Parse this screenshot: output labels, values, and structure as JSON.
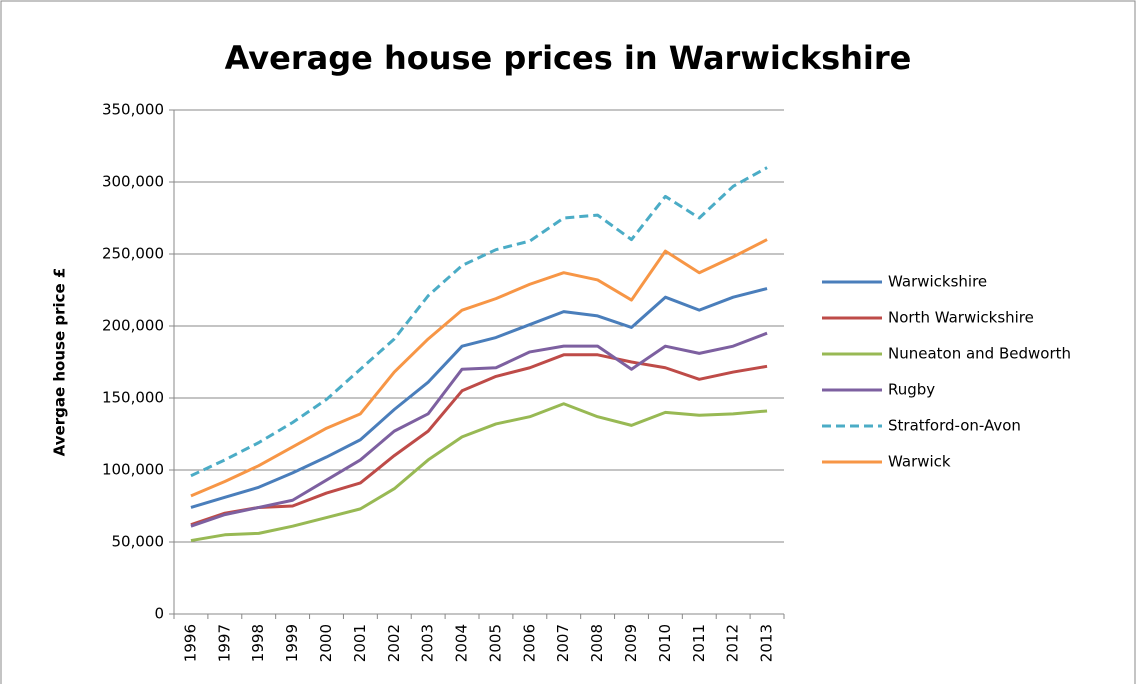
{
  "chart_data": {
    "type": "line",
    "title": "Average house prices in Warwickshire",
    "y_label": "Avergae house price £",
    "categories": [
      "1996",
      "1997",
      "1998",
      "1999",
      "2000",
      "2001",
      "2002",
      "2003",
      "2004",
      "2005",
      "2006",
      "2007",
      "2008",
      "2009",
      "2010",
      "2011",
      "2012",
      "2013"
    ],
    "series": [
      {
        "name": "Warwickshire",
        "color": "#4a7ebb",
        "style": "solid",
        "values": [
          74000,
          81000,
          88000,
          98000,
          109000,
          121000,
          142000,
          161000,
          186000,
          192000,
          201000,
          210000,
          207000,
          199000,
          220000,
          211000,
          220000,
          226000
        ]
      },
      {
        "name": "North Warwickshire",
        "color": "#be4b48",
        "style": "solid",
        "values": [
          62000,
          70000,
          74000,
          75000,
          84000,
          91000,
          110000,
          127000,
          155000,
          165000,
          171000,
          180000,
          180000,
          175000,
          171000,
          163000,
          168000,
          172000
        ]
      },
      {
        "name": "Nuneaton and Bedworth",
        "color": "#98b954",
        "style": "solid",
        "values": [
          51000,
          55000,
          56000,
          61000,
          67000,
          73000,
          87000,
          107000,
          123000,
          132000,
          137000,
          146000,
          137000,
          131000,
          140000,
          138000,
          139000,
          141000
        ]
      },
      {
        "name": "Rugby",
        "color": "#7d60a0",
        "style": "solid",
        "values": [
          61000,
          69000,
          74000,
          79000,
          93000,
          107000,
          127000,
          139000,
          170000,
          171000,
          182000,
          186000,
          186000,
          170000,
          186000,
          181000,
          186000,
          195000
        ]
      },
      {
        "name": "Stratford-on-Avon",
        "color": "#4bacc6",
        "style": "dashed",
        "values": [
          96000,
          107000,
          119000,
          133000,
          149000,
          170000,
          191000,
          221000,
          242000,
          253000,
          259000,
          275000,
          277000,
          260000,
          290000,
          275000,
          297000,
          310000
        ]
      },
      {
        "name": "Warwick",
        "color": "#f79646",
        "style": "solid",
        "values": [
          82000,
          92000,
          103000,
          116000,
          129000,
          139000,
          168000,
          191000,
          211000,
          219000,
          229000,
          237000,
          232000,
          218000,
          252000,
          237000,
          248000,
          260000
        ]
      }
    ],
    "ylim": [
      0,
      350000
    ],
    "yticks": [
      0,
      {
        "value": 50000,
        "label": "50,000"
      },
      {
        "value": 100000,
        "label": "100,000"
      },
      {
        "value": 150000,
        "label": "150,000"
      },
      {
        "value": 200000,
        "label": "200,000"
      },
      {
        "value": 250000,
        "label": "250,000"
      },
      {
        "value": 300000,
        "label": "300,000"
      },
      {
        "value": 350000,
        "label": "350,000"
      }
    ],
    "grid": true,
    "legend": "right"
  }
}
